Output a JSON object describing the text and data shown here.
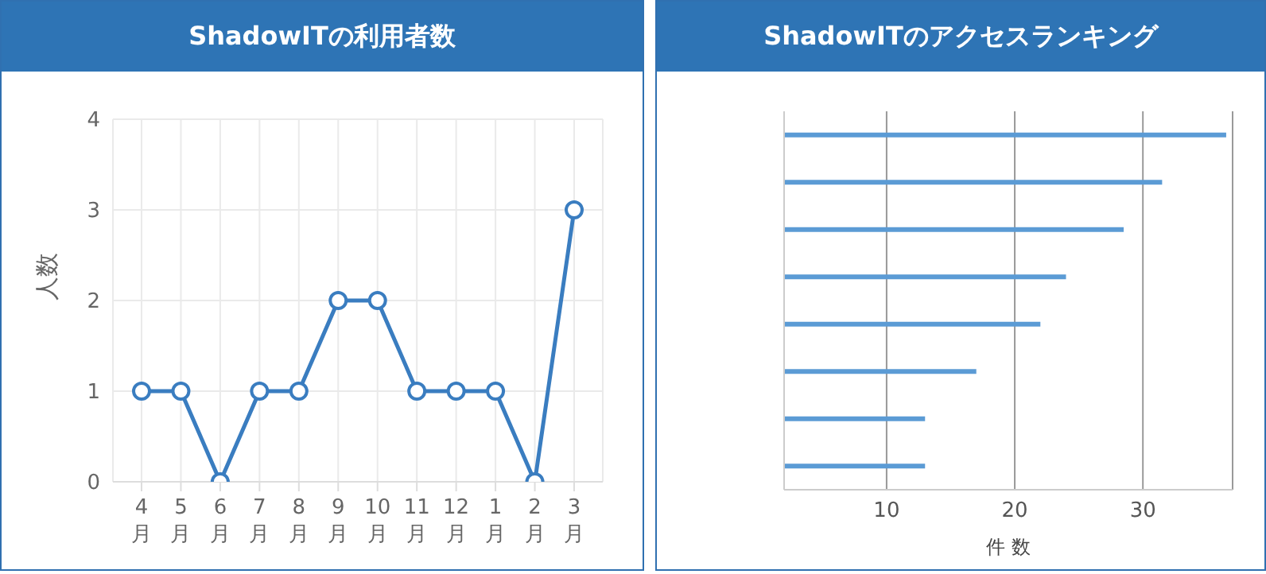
{
  "chart_data": [
    {
      "type": "line",
      "title": "ShadowITの利用者数",
      "ylabel": "人数",
      "categories": [
        "4月",
        "5月",
        "6月",
        "7月",
        "8月",
        "9月",
        "10月",
        "11月",
        "12月",
        "1月",
        "2月",
        "3月"
      ],
      "series": [
        {
          "color": "#3a7dc0",
          "values": [
            1,
            1,
            0,
            1,
            1,
            2,
            2,
            1,
            1,
            1,
            0,
            3
          ]
        }
      ],
      "ylim": [
        0,
        4
      ],
      "yticks": [
        0,
        1,
        2,
        3,
        4
      ],
      "grid": true,
      "marker": "circle",
      "line_style": "solid",
      "legend": false
    },
    {
      "type": "bar",
      "orientation": "horizontal",
      "title": "ShadowITのアクセスランキング",
      "xlabel": "件 数",
      "categories": [
        null,
        null,
        null,
        null,
        null,
        null,
        null,
        null
      ],
      "series": [
        {
          "color": "#5b9bd5",
          "values": [
            36.5,
            31.5,
            28.5,
            24,
            22,
            17,
            13,
            13
          ]
        }
      ],
      "xlim": [
        2,
        37
      ],
      "xticks": [
        10,
        20,
        30
      ],
      "grid": "x",
      "legend": false
    }
  ]
}
